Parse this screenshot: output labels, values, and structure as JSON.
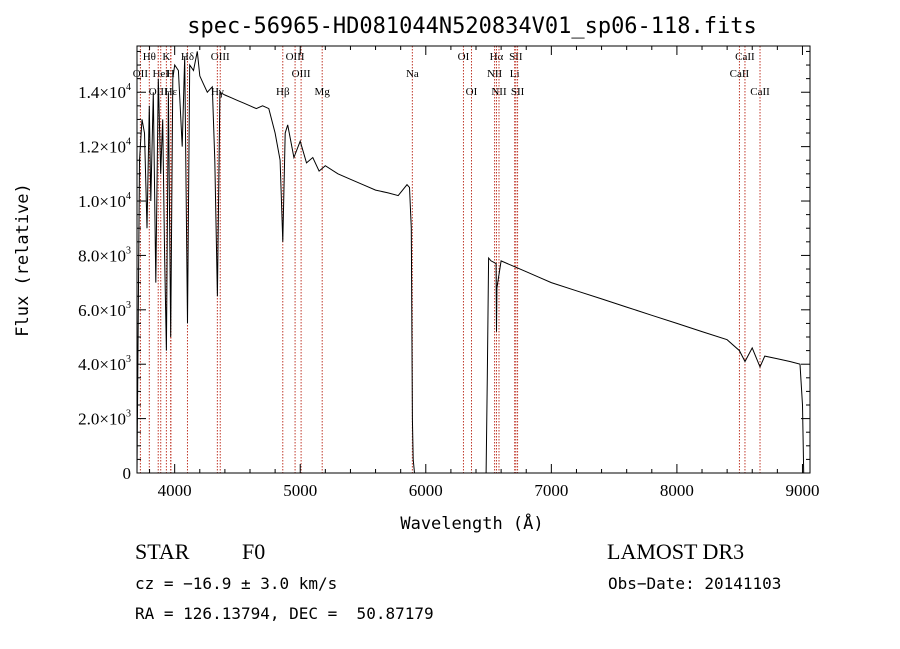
{
  "chart_data": {
    "type": "line",
    "title": "spec-56965-HD081044N520834V01_sp06-118.fits",
    "xlabel": "Wavelength (Å)",
    "ylabel": "Flux (relative)",
    "xlim": [
      3700,
      9060
    ],
    "ylim": [
      0,
      15700
    ],
    "x_ticks": [
      4000,
      5000,
      6000,
      7000,
      8000,
      9000
    ],
    "x_tick_labels": [
      "4000",
      "5000",
      "6000",
      "7000",
      "8000",
      "9000"
    ],
    "y_ticks": [
      0,
      2000,
      4000,
      6000,
      8000,
      10000,
      12000,
      14000
    ],
    "y_tick_labels": [
      {
        "mant": "0",
        "exp": ""
      },
      {
        "mant": "2.0×10",
        "exp": "3"
      },
      {
        "mant": "4.0×10",
        "exp": "3"
      },
      {
        "mant": "6.0×10",
        "exp": "3"
      },
      {
        "mant": "8.0×10",
        "exp": "3"
      },
      {
        "mant": "1.0×10",
        "exp": "4"
      },
      {
        "mant": "1.2×10",
        "exp": "4"
      },
      {
        "mant": "1.4×10",
        "exp": "4"
      }
    ],
    "series": [
      {
        "name": "flux",
        "x": [
          3700,
          3720,
          3740,
          3760,
          3780,
          3798,
          3810,
          3830,
          3850,
          3870,
          3889,
          3905,
          3920,
          3934,
          3950,
          3968,
          3985,
          4000,
          4030,
          4060,
          4080,
          4102,
          4120,
          4150,
          4180,
          4200,
          4230,
          4260,
          4300,
          4320,
          4340,
          4360,
          4400,
          4450,
          4500,
          4550,
          4600,
          4650,
          4700,
          4750,
          4800,
          4840,
          4861,
          4880,
          4900,
          4950,
          5000,
          5050,
          5100,
          5150,
          5200,
          5300,
          5400,
          5500,
          5600,
          5700,
          5780,
          5850,
          5870,
          5885,
          5893,
          5900,
          5910,
          5960,
          6000,
          6100,
          6200,
          6300,
          6400,
          6480,
          6490,
          6500,
          6520,
          6560,
          6563,
          6566,
          6600,
          6700,
          6800,
          6900,
          7000,
          7200,
          7400,
          7600,
          7800,
          8000,
          8200,
          8400,
          8498,
          8542,
          8600,
          8662,
          8700,
          8800,
          8900,
          8980,
          9000,
          9010
        ],
        "y": [
          0,
          11500,
          13000,
          12500,
          9000,
          13500,
          10000,
          14000,
          7000,
          14500,
          11000,
          13000,
          8000,
          4500,
          14000,
          5000,
          14500,
          15000,
          14800,
          12000,
          15300,
          5500,
          15000,
          14800,
          15500,
          14600,
          14300,
          14000,
          14200,
          11500,
          6500,
          14000,
          13900,
          13800,
          13700,
          13600,
          13500,
          13400,
          13500,
          13400,
          12500,
          11500,
          8500,
          12500,
          12800,
          11600,
          12200,
          11400,
          11600,
          11100,
          11300,
          11000,
          10800,
          10600,
          10400,
          10300,
          10200,
          10600,
          10500,
          9000,
          2000,
          500,
          0,
          0,
          0,
          0,
          0,
          0,
          0,
          0,
          3500,
          7900,
          7800,
          7700,
          5200,
          6800,
          7800,
          7600,
          7400,
          7200,
          7000,
          6700,
          6400,
          6100,
          5800,
          5500,
          5200,
          4900,
          4500,
          4100,
          4600,
          3900,
          4300,
          4200,
          4100,
          4000,
          2500,
          0
        ]
      }
    ],
    "spectral_lines": [
      {
        "label": "Hθ",
        "wl": 3798,
        "row": 0
      },
      {
        "label": "K",
        "wl": 3934,
        "row": 0
      },
      {
        "label": "Hδ",
        "wl": 4102,
        "row": 0
      },
      {
        "label": "OIII",
        "wl": 4363,
        "row": 0
      },
      {
        "label": "OII",
        "wl": 3727,
        "row": 1
      },
      {
        "label": "HeI",
        "wl": 3889,
        "row": 1
      },
      {
        "label": "H",
        "wl": 3968,
        "row": 1
      },
      {
        "label": "Hγ",
        "wl": 4340,
        "row": 2
      },
      {
        "label": "OIII",
        "wl": 3869,
        "row": 2
      },
      {
        "label": "Hε",
        "wl": 3970,
        "row": 2
      },
      {
        "label": "OIII",
        "wl": 4959,
        "row": 0
      },
      {
        "label": "OIII",
        "wl": 5007,
        "row": 1
      },
      {
        "label": "Hβ",
        "wl": 4861,
        "row": 2
      },
      {
        "label": "Mg",
        "wl": 5175,
        "row": 2
      },
      {
        "label": "Na",
        "wl": 5893,
        "row": 1
      },
      {
        "label": "OI",
        "wl": 6300,
        "row": 0
      },
      {
        "label": "OI",
        "wl": 6364,
        "row": 2
      },
      {
        "label": "Hα",
        "wl": 6563,
        "row": 0
      },
      {
        "label": "SII",
        "wl": 6717,
        "row": 0
      },
      {
        "label": "NII",
        "wl": 6548,
        "row": 1
      },
      {
        "label": "Li",
        "wl": 6708,
        "row": 1
      },
      {
        "label": "NII",
        "wl": 6583,
        "row": 2
      },
      {
        "label": "SII",
        "wl": 6731,
        "row": 2
      },
      {
        "label": "CaII",
        "wl": 8542,
        "row": 0
      },
      {
        "label": "CaII",
        "wl": 8498,
        "row": 1
      },
      {
        "label": "CaII",
        "wl": 8662,
        "row": 2
      }
    ]
  },
  "info": {
    "object_type": "STAR",
    "subclass": "F0",
    "survey": "LAMOST DR3",
    "cz_line": "cz = −16.9 ± 3.0 km/s",
    "obs_date_line": "Obs−Date: 20141103",
    "radec_line": "RA = 126.13794, DEC =  50.87179"
  },
  "colors": {
    "line_marker": "#c0392b",
    "spectrum": "#000000"
  }
}
